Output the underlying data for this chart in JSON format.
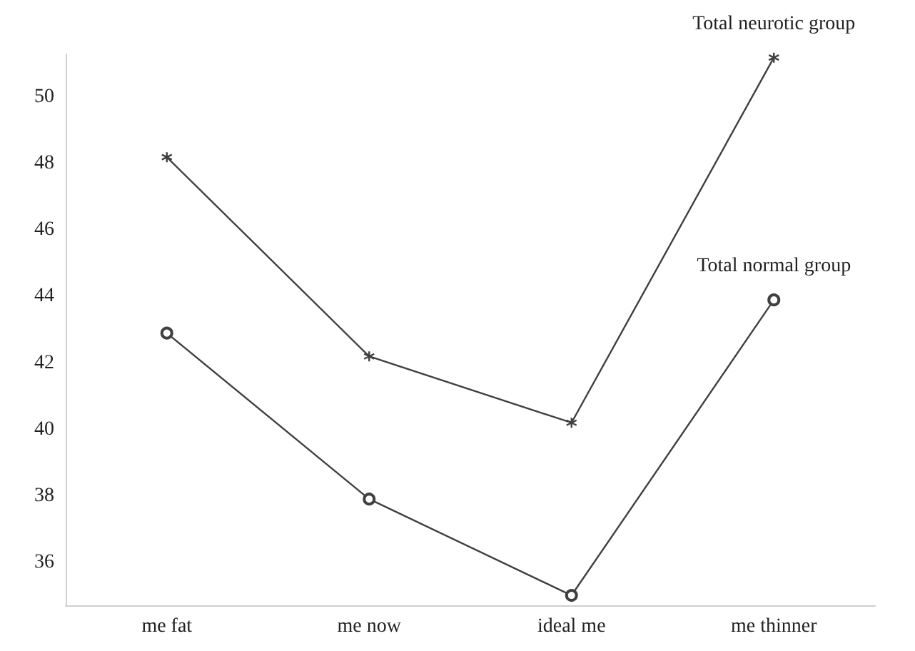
{
  "chart_data": {
    "type": "line",
    "categories": [
      "me fat",
      "me now",
      "ideal me",
      "me thinner"
    ],
    "series": [
      {
        "name": "Total neurotic group",
        "color": "#404040",
        "marker": "cross",
        "values": [
          48.2,
          42.2,
          40.2,
          51.2
        ]
      },
      {
        "name": "Total normal group",
        "color": "#404040",
        "marker": "circle",
        "values": [
          42.9,
          37.9,
          35.0,
          43.9
        ]
      }
    ],
    "ylim": [
      34.7,
      51.3
    ],
    "yticks": [
      36,
      38,
      40,
      42,
      44,
      46,
      48,
      50
    ],
    "grid": false,
    "legend": false,
    "line_style": "solid"
  }
}
